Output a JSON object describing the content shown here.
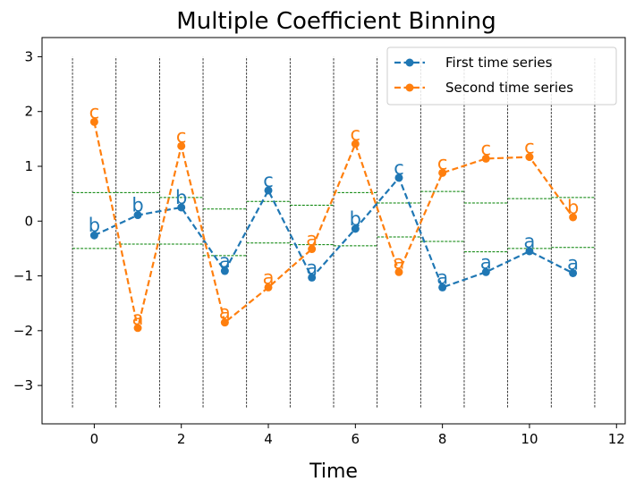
{
  "chart_data": {
    "type": "line",
    "title": "Multiple Coefficient Binning",
    "xlabel": "Time",
    "ylabel": "",
    "xlim": [
      -1.2,
      12.2
    ],
    "ylim": [
      -3.7,
      3.35
    ],
    "x_ticks": [
      0,
      2,
      4,
      6,
      8,
      10,
      12
    ],
    "y_ticks": [
      -3,
      -2,
      -1,
      0,
      1,
      2,
      3
    ],
    "x_tick_labels": [
      "0",
      "2",
      "4",
      "6",
      "8",
      "10",
      "12"
    ],
    "y_tick_labels": [
      "−3",
      "−2",
      "−1",
      "0",
      "1",
      "2",
      "3"
    ],
    "grid": false,
    "legend_position": "top-right",
    "x": [
      0,
      1,
      2,
      3,
      4,
      5,
      6,
      7,
      8,
      9,
      10,
      11
    ],
    "series": [
      {
        "name": "First time series",
        "color": "#1f77b4",
        "values": [
          -0.26,
          0.11,
          0.25,
          -0.91,
          0.56,
          -1.03,
          -0.14,
          0.79,
          -1.21,
          -0.93,
          -0.55,
          -0.95
        ],
        "labels": [
          "b",
          "b",
          "b",
          "a",
          "c",
          "a",
          "b",
          "c",
          "a",
          "a",
          "a",
          "a"
        ]
      },
      {
        "name": "Second time series",
        "color": "#ff7f0e",
        "values": [
          1.81,
          -1.95,
          1.37,
          -1.85,
          -1.21,
          -0.51,
          1.41,
          -0.93,
          0.88,
          1.14,
          1.17,
          0.07
        ],
        "labels": [
          "c",
          "a",
          "c",
          "a",
          "a",
          "a",
          "c",
          "a",
          "c",
          "c",
          "c",
          "b"
        ]
      }
    ],
    "bin_boundaries_x": [
      -0.5,
      0.5,
      1.5,
      2.5,
      3.5,
      4.5,
      5.5,
      6.5,
      7.5,
      8.5,
      9.5,
      10.5,
      11.5
    ],
    "bin_boundaries_y_range": [
      -3.4,
      3.0
    ],
    "bin_boundary_color": "#000000",
    "threshold_color": "#008000",
    "thresholds": [
      [
        -0.5,
        0.52
      ],
      [
        -0.42,
        0.52
      ],
      [
        -0.42,
        0.43
      ],
      [
        -0.63,
        0.22
      ],
      [
        -0.4,
        0.36
      ],
      [
        -0.43,
        0.29
      ],
      [
        -0.45,
        0.52
      ],
      [
        -0.29,
        0.33
      ],
      [
        -0.37,
        0.54
      ],
      [
        -0.56,
        0.33
      ],
      [
        -0.5,
        0.41
      ],
      [
        -0.48,
        0.43
      ]
    ]
  }
}
